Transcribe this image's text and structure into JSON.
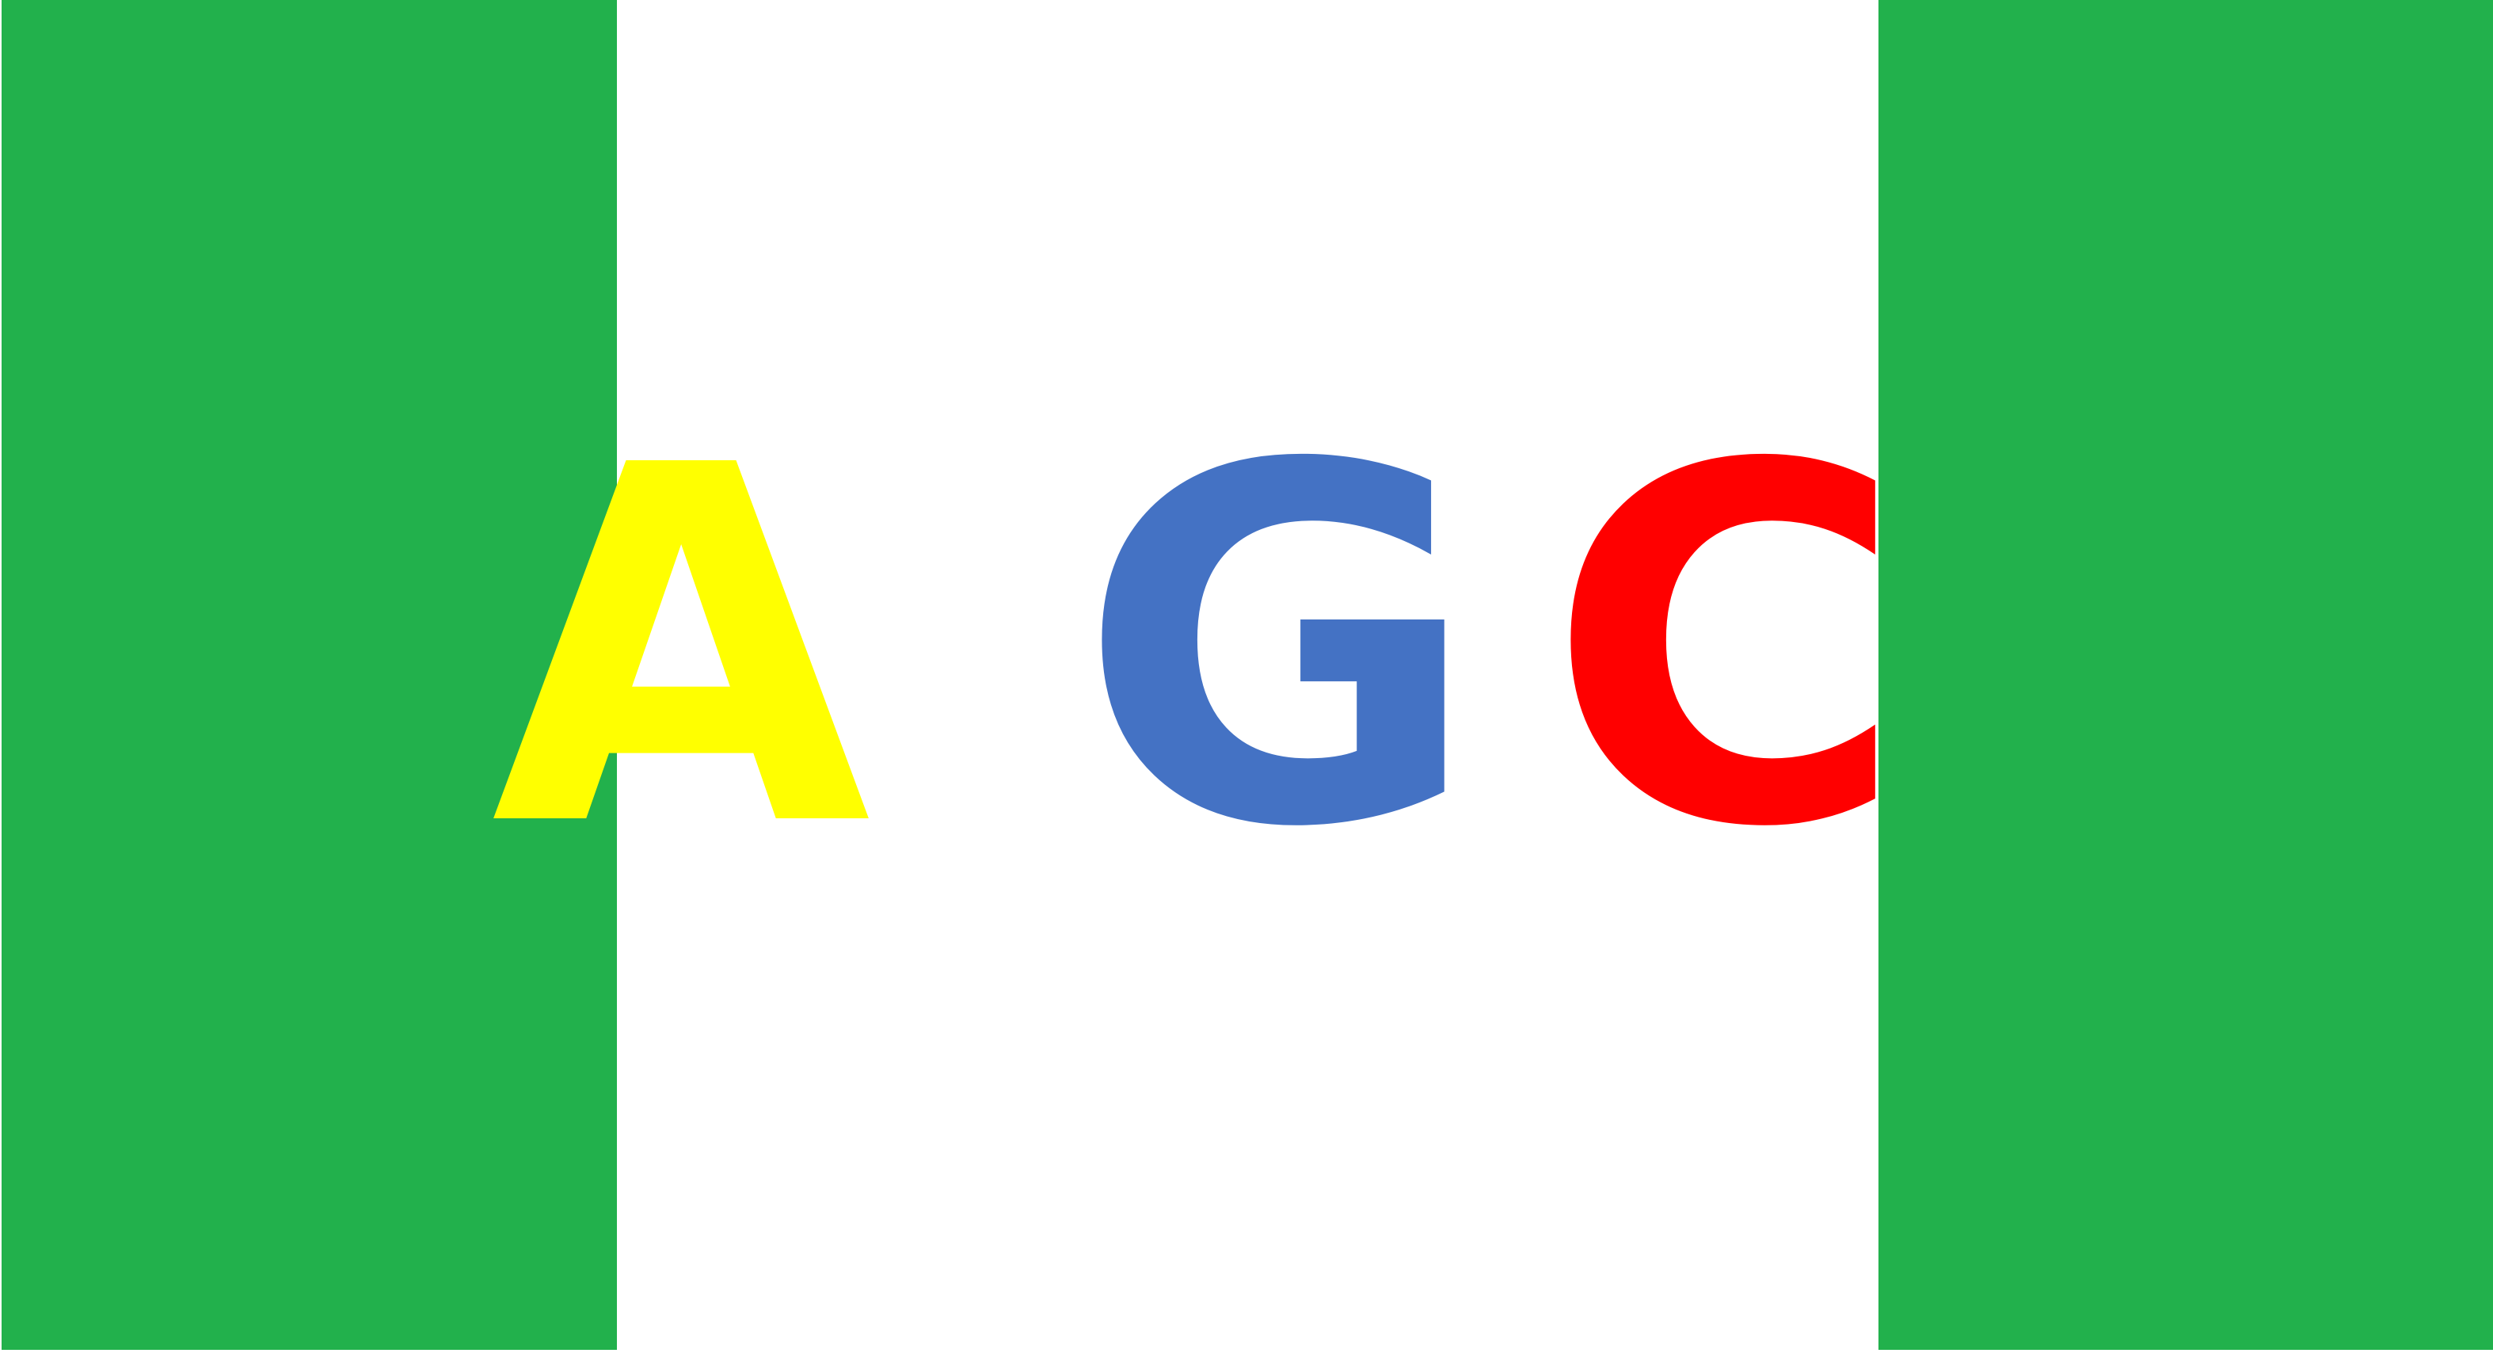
{
  "colors": {
    "band": "#22b14c",
    "background": "#ffffff"
  },
  "letters": [
    {
      "text": "A",
      "color": "#ffff00"
    },
    {
      "text": "G",
      "color": "#4472c4"
    },
    {
      "text": "C",
      "color": "#ff0000"
    }
  ]
}
